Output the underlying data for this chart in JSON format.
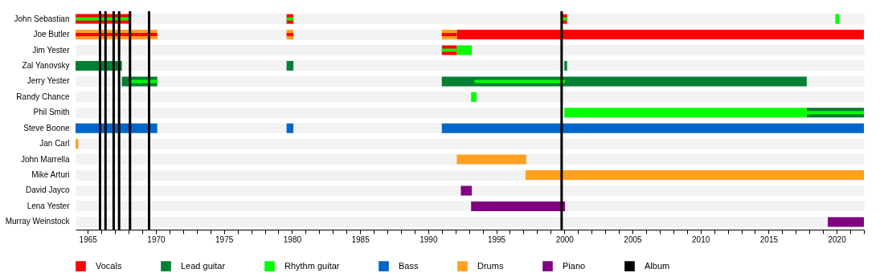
{
  "chart_data": {
    "type": "bar",
    "orientation": "horizontal",
    "categories": [
      "John Sebastian",
      "Joe Butler",
      "Jim Yester",
      "Zal Yanovsky",
      "Jerry Yester",
      "Randy Chance",
      "Phil Smith",
      "Steve Boone",
      "Jan Carl",
      "John Marrella",
      "Mike Arturi",
      "David Jayco",
      "Lena Yester",
      "Murray Weinstock"
    ],
    "xlim": [
      1964.1,
      2022
    ],
    "xticks": [
      1965,
      {
        "value": 1966,
        "label": null
      },
      {
        "value": 1967,
        "label": null
      },
      {
        "value": 1968,
        "label": null
      },
      {
        "value": 1969,
        "label": null
      },
      1970,
      {
        "value": 1971,
        "label": null
      },
      {
        "value": 1972,
        "label": null
      },
      {
        "value": 1973,
        "label": null
      },
      {
        "value": 1974,
        "label": null
      },
      1975,
      {
        "value": 1976,
        "label": null
      },
      {
        "value": 1977,
        "label": null
      },
      {
        "value": 1978,
        "label": null
      },
      {
        "value": 1979,
        "label": null
      },
      1980,
      {
        "value": 1981,
        "label": null
      },
      {
        "value": 1982,
        "label": null
      },
      {
        "value": 1983,
        "label": null
      },
      {
        "value": 1984,
        "label": null
      },
      1985,
      {
        "value": 1986,
        "label": null
      },
      {
        "value": 1987,
        "label": null
      },
      {
        "value": 1988,
        "label": null
      },
      {
        "value": 1989,
        "label": null
      },
      1990,
      {
        "value": 1991,
        "label": null
      },
      {
        "value": 1992,
        "label": null
      },
      {
        "value": 1993,
        "label": null
      },
      {
        "value": 1994,
        "label": null
      },
      1995,
      {
        "value": 1996,
        "label": null
      },
      {
        "value": 1997,
        "label": null
      },
      {
        "value": 1998,
        "label": null
      },
      {
        "value": 1999,
        "label": null
      },
      2000,
      {
        "value": 2001,
        "label": null
      },
      {
        "value": 2002,
        "label": null
      },
      {
        "value": 2003,
        "label": null
      },
      {
        "value": 2004,
        "label": null
      },
      2005,
      {
        "value": 2006,
        "label": null
      },
      {
        "value": 2007,
        "label": null
      },
      {
        "value": 2008,
        "label": null
      },
      {
        "value": 2009,
        "label": null
      },
      2010,
      {
        "value": 2011,
        "label": null
      },
      {
        "value": 2012,
        "label": null
      },
      {
        "value": 2013,
        "label": null
      },
      {
        "value": 2014,
        "label": null
      },
      2015,
      {
        "value": 2016,
        "label": null
      },
      {
        "value": 2017,
        "label": null
      },
      {
        "value": 2018,
        "label": null
      },
      {
        "value": 2019,
        "label": null
      },
      2020,
      {
        "value": 2021,
        "label": null
      },
      {
        "value": 2022,
        "label": null
      }
    ],
    "grid": "y",
    "legend": "bottom",
    "series": [
      {
        "name": "Vocals",
        "color": "#ff0000",
        "base": [
          1964.1,
          1992.1,
          null,
          null,
          null,
          null,
          null,
          null,
          null,
          null,
          null,
          null,
          null,
          null
        ],
        "values": [
          4.0,
          29.9,
          null,
          null,
          null,
          null,
          null,
          null,
          null,
          null,
          null,
          null,
          null,
          null
        ]
      },
      {
        "name": "Lead guitar",
        "color": "#008033",
        "base": [
          null,
          null,
          null,
          1964.1,
          1967.5,
          null,
          2017.8,
          null,
          null,
          null,
          null,
          null,
          null,
          null
        ],
        "values": [
          null,
          null,
          null,
          3.4,
          2.6,
          null,
          4.2,
          null,
          null,
          null,
          null,
          null,
          null,
          null
        ]
      },
      {
        "name": "Rhythm guitar",
        "color": "#00ff00",
        "base": [
          1964.1,
          null,
          1992.1,
          null,
          1968.1,
          1993.15,
          2017.8,
          null,
          null,
          null,
          null,
          null,
          null,
          null
        ],
        "values": [
          4.0,
          null,
          1.1,
          null,
          2.0,
          0.4,
          4.2,
          null,
          null,
          null,
          null,
          null,
          null,
          null
        ]
      },
      {
        "name": "Bass",
        "color": "#0066cc",
        "base": [
          null,
          null,
          null,
          null,
          null,
          null,
          null,
          1964.1,
          null,
          null,
          null,
          null,
          null,
          null
        ],
        "values": [
          null,
          null,
          null,
          null,
          null,
          null,
          null,
          6.0,
          null,
          null,
          null,
          null,
          null,
          null
        ]
      },
      {
        "name": "Drums",
        "color": "#ffa020",
        "base": [
          null,
          1964.1,
          null,
          null,
          null,
          null,
          null,
          null,
          1964.1,
          1992.1,
          1997.15,
          null,
          null,
          null
        ],
        "values": [
          null,
          6.0,
          null,
          null,
          null,
          null,
          null,
          null,
          0.2,
          5.1,
          24.85,
          null,
          null,
          null
        ]
      },
      {
        "name": "Piano",
        "color": "#800080",
        "base": [
          null,
          null,
          null,
          null,
          null,
          null,
          null,
          null,
          null,
          null,
          null,
          1992.4,
          1993.15,
          2019.35
        ],
        "values": [
          null,
          null,
          null,
          null,
          null,
          null,
          null,
          null,
          null,
          null,
          null,
          0.8,
          6.9,
          2.65
        ]
      },
      {
        "color": "#ffa020",
        "base": [
          null,
          1979.6,
          null,
          null,
          null,
          null,
          null,
          null,
          null,
          null,
          null,
          null,
          null,
          null
        ],
        "values": [
          null,
          0.5,
          null,
          null,
          null,
          null,
          null,
          null,
          null,
          null,
          null,
          null,
          null,
          null
        ]
      },
      {
        "color": "#ffa020",
        "base": [
          null,
          1991.0,
          null,
          null,
          null,
          null,
          null,
          null,
          null,
          null,
          null,
          null,
          null,
          null
        ],
        "values": [
          null,
          1.1,
          null,
          null,
          null,
          null,
          null,
          null,
          null,
          null,
          null,
          null,
          null,
          null
        ]
      },
      {
        "color": "#008033",
        "base": [
          null,
          null,
          null,
          1979.6,
          1991.0,
          null,
          null,
          null,
          null,
          null,
          null,
          null,
          null,
          null
        ],
        "values": [
          null,
          null,
          null,
          0.5,
          26.8,
          null,
          null,
          null,
          null,
          null,
          null,
          null,
          null,
          null
        ]
      },
      {
        "color": "#008033",
        "base": [
          null,
          null,
          null,
          2000.0,
          null,
          null,
          null,
          null,
          null,
          null,
          null,
          null,
          null,
          null
        ],
        "values": [
          null,
          null,
          null,
          0.2,
          null,
          null,
          null,
          null,
          null,
          null,
          null,
          null,
          null,
          null
        ]
      },
      {
        "color": "#0066cc",
        "base": [
          null,
          null,
          null,
          null,
          null,
          null,
          null,
          1979.6,
          null,
          null,
          null,
          null,
          null,
          null
        ],
        "values": [
          null,
          null,
          null,
          null,
          null,
          null,
          null,
          0.5,
          null,
          null,
          null,
          null,
          null,
          null
        ]
      },
      {
        "color": "#0066cc",
        "base": [
          null,
          null,
          null,
          null,
          null,
          null,
          null,
          1991.0,
          null,
          null,
          null,
          null,
          null,
          null
        ],
        "values": [
          null,
          null,
          null,
          null,
          null,
          null,
          null,
          31.0,
          null,
          null,
          null,
          null,
          null,
          null
        ]
      },
      {
        "color": "#ff0000",
        "base": [
          1979.6,
          1964.1,
          1991.0,
          null,
          null,
          null,
          null,
          null,
          null,
          null,
          null,
          null,
          null,
          null
        ],
        "values": [
          0.5,
          6.0,
          1.1,
          null,
          null,
          null,
          null,
          null,
          null,
          null,
          null,
          null,
          null,
          null
        ]
      },
      {
        "color": "#ff0000",
        "base": [
          1999.8,
          1979.6,
          null,
          null,
          null,
          null,
          null,
          null,
          null,
          null,
          null,
          null,
          null,
          null
        ],
        "values": [
          0.4,
          0.5,
          null,
          null,
          null,
          null,
          null,
          null,
          null,
          null,
          null,
          null,
          null,
          null
        ]
      },
      {
        "color": "#ff0000",
        "base": [
          null,
          1991.0,
          null,
          null,
          null,
          null,
          null,
          null,
          null,
          null,
          null,
          null,
          null,
          null
        ],
        "values": [
          null,
          1.1,
          null,
          null,
          null,
          null,
          null,
          null,
          null,
          null,
          null,
          null,
          null,
          null
        ]
      },
      {
        "color": "#00ff00",
        "base": [
          1979.6,
          null,
          1991.0,
          null,
          1993.4,
          null,
          2000.0,
          null,
          null,
          null,
          null,
          null,
          null,
          null
        ],
        "values": [
          0.5,
          null,
          1.1,
          null,
          6.65,
          null,
          17.8,
          null,
          null,
          null,
          null,
          null,
          null,
          null
        ]
      },
      {
        "color": "#00ff00",
        "base": [
          1999.8,
          null,
          null,
          null,
          null,
          null,
          null,
          null,
          null,
          null,
          null,
          null,
          null,
          null
        ],
        "values": [
          0.4,
          null,
          null,
          null,
          null,
          null,
          null,
          null,
          null,
          null,
          null,
          null,
          null,
          null
        ]
      },
      {
        "color": "#00ff00",
        "base": [
          2019.9,
          null,
          null,
          null,
          null,
          null,
          null,
          null,
          null,
          null,
          null,
          null,
          null,
          null
        ],
        "values": [
          0.3,
          null,
          null,
          null,
          null,
          null,
          null,
          null,
          null,
          null,
          null,
          null,
          null,
          null
        ]
      }
    ],
    "ref_lines": [
      {
        "axis": "x",
        "value": 1965.9,
        "label": "Album",
        "color": "#000000"
      },
      {
        "axis": "x",
        "value": 1966.3,
        "label": null,
        "color": "#000000"
      },
      {
        "axis": "x",
        "value": 1966.9,
        "label": null,
        "color": "#000000"
      },
      {
        "axis": "x",
        "value": 1967.3,
        "label": null,
        "color": "#000000"
      },
      {
        "axis": "x",
        "value": 1968.1,
        "label": null,
        "color": "#000000"
      },
      {
        "axis": "x",
        "value": 1969.5,
        "label": null,
        "color": "#000000"
      },
      {
        "axis": "x",
        "value": 1999.8,
        "label": null,
        "color": "#000000"
      }
    ]
  }
}
